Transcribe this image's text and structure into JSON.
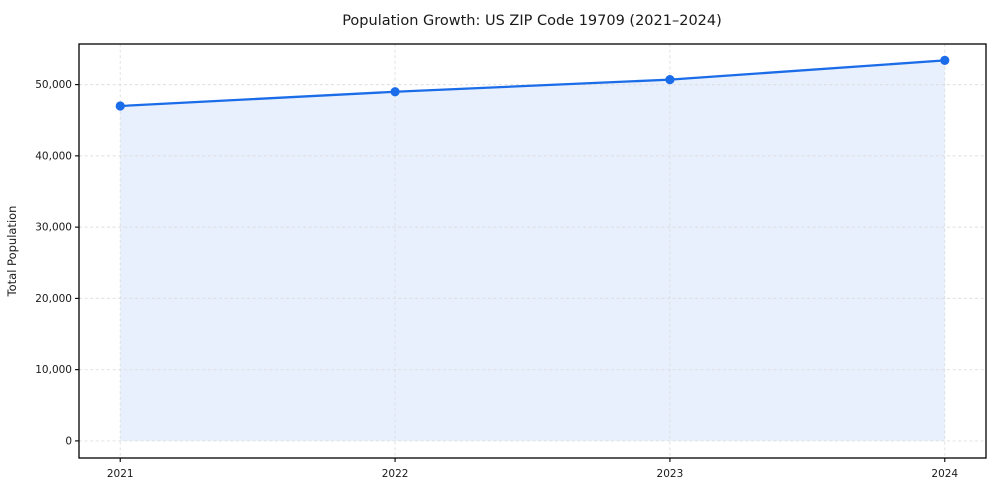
{
  "chart_data": {
    "type": "line",
    "title": "Population Growth: US ZIP Code 19709 (2021–2024)",
    "xlabel": "",
    "ylabel": "Total Population",
    "x": [
      2021,
      2022,
      2023,
      2024
    ],
    "series": [
      {
        "name": "Total Population",
        "values": [
          47000,
          49000,
          50700,
          53400
        ]
      }
    ],
    "xlim": [
      2020.85,
      2024.15
    ],
    "ylim": [
      -2400,
      55700
    ],
    "xticks": [
      2021,
      2022,
      2023,
      2024
    ],
    "xtick_labels": [
      "2021",
      "2022",
      "2023",
      "2024"
    ],
    "yticks": [
      0,
      10000,
      20000,
      30000,
      40000,
      50000
    ],
    "ytick_labels": [
      "0",
      "10,000",
      "20,000",
      "30,000",
      "40,000",
      "50,000"
    ],
    "grid": true,
    "grid_style": "dashed",
    "legend": "none",
    "marker": "circle",
    "area_fill": true,
    "colors": {
      "line": "#1b6ce8",
      "fill": "#1b6ce8",
      "fill_opacity": 0.1,
      "grid": "#d9d9d9",
      "spine": "#000000",
      "text": "#1a1a1a",
      "background": "#ffffff"
    }
  }
}
